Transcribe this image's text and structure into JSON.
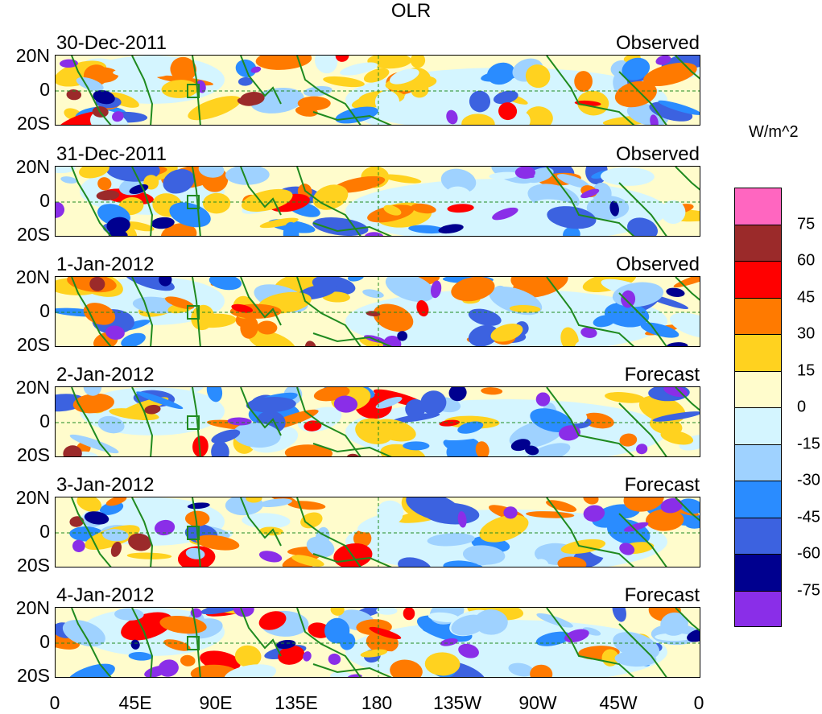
{
  "title": "OLR",
  "units": "W/m^2",
  "panels": [
    {
      "date": "30-Dec-2011",
      "kind": "Observed"
    },
    {
      "date": "31-Dec-2011",
      "kind": "Observed"
    },
    {
      "date": "1-Jan-2012",
      "kind": "Observed"
    },
    {
      "date": "2-Jan-2012",
      "kind": "Forecast"
    },
    {
      "date": "3-Jan-2012",
      "kind": "Forecast"
    },
    {
      "date": "4-Jan-2012",
      "kind": "Forecast"
    }
  ],
  "lat_labels": [
    "20N",
    "0",
    "20S"
  ],
  "lon_labels": [
    "0",
    "45E",
    "90E",
    "135E",
    "180",
    "135W",
    "90W",
    "45W",
    "0"
  ],
  "colorbar": {
    "colors": [
      "#ff66c0",
      "#9b2a2a",
      "#ff0000",
      "#ff7a00",
      "#ffd21f",
      "#fffccc",
      "#d4f5ff",
      "#9fd2ff",
      "#2a8cff",
      "#3c62e0",
      "#00008f",
      "#8a2ee8"
    ],
    "labels": [
      "75",
      "60",
      "45",
      "30",
      "15",
      "0",
      "-15",
      "-30",
      "-45",
      "-60",
      "-75"
    ]
  }
}
